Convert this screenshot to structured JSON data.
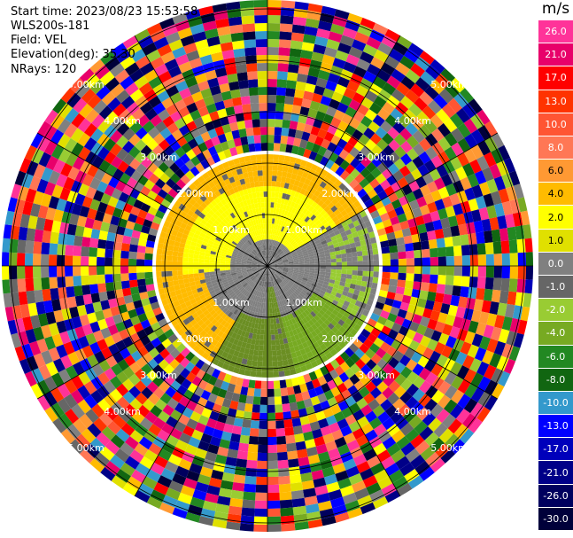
{
  "info": {
    "start_time": "Start time: 2023/08/23 15:53:58",
    "instrument": "WLS200s-181",
    "field": "Field: VEL",
    "elevation": "Elevation(deg): 35.30",
    "nrays": "NRays: 120"
  },
  "colorbar": {
    "unit": "m/s",
    "labels": [
      "26.0",
      "21.0",
      "17.0",
      "13.0",
      "10.0",
      "8.0",
      "6.0",
      "4.0",
      "2.0",
      "1.0",
      "0.0",
      "-1.0",
      "-2.0",
      "-4.0",
      "-6.0",
      "-8.0",
      "-10.0",
      "-13.0",
      "-17.0",
      "-21.0",
      "-26.0",
      "-30.0"
    ],
    "colors": [
      "#ff3399",
      "#e8006a",
      "#ff0000",
      "#ff3300",
      "#ff5533",
      "#ff7755",
      "#ff9933",
      "#ffbb00",
      "#ffff00",
      "#e0e000",
      "#808080",
      "#666666",
      "#99cc33",
      "#77aa22",
      "#228822",
      "#116611",
      "#3399cc",
      "#0000ff",
      "#0000bb",
      "#000088",
      "#00005e",
      "#00003a"
    ]
  },
  "range_rings": {
    "labels": [
      "1.00km",
      "2.00km",
      "3.00km",
      "4.00km",
      "5.00km"
    ]
  }
}
